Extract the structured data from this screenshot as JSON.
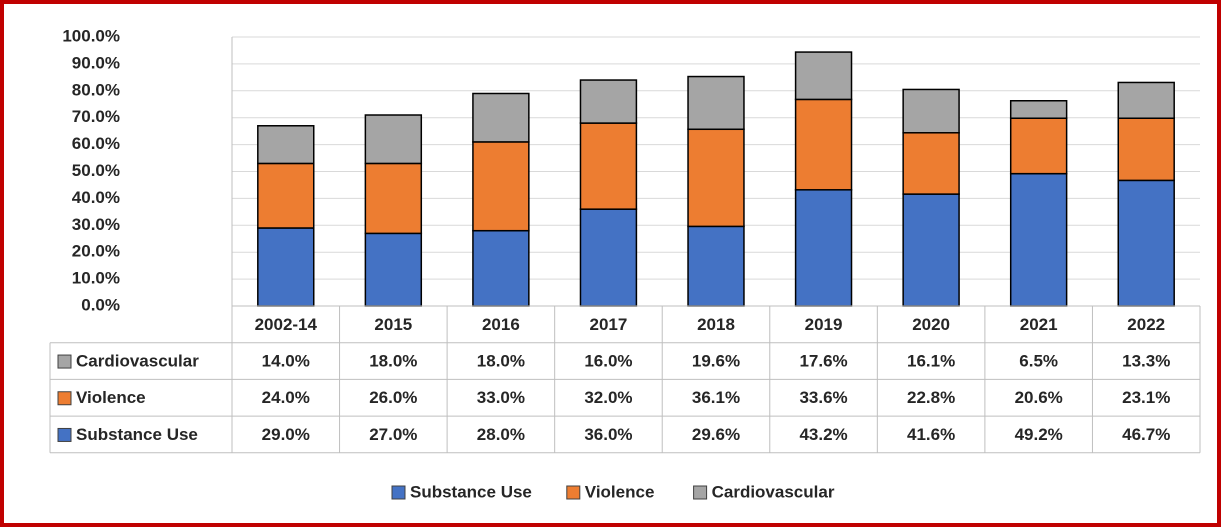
{
  "chart_data": {
    "type": "bar",
    "stacked": true,
    "categories": [
      "2002-14",
      "2015",
      "2016",
      "2017",
      "2018",
      "2019",
      "2020",
      "2021",
      "2022"
    ],
    "series": [
      {
        "name": "Substance Use",
        "color": "#4472c4",
        "values": [
          29.0,
          27.0,
          28.0,
          36.0,
          29.6,
          43.2,
          41.6,
          49.2,
          46.7
        ],
        "value_labels": [
          "29.0%",
          "27.0%",
          "28.0%",
          "36.0%",
          "29.6%",
          "43.2%",
          "41.6%",
          "49.2%",
          "46.7%"
        ]
      },
      {
        "name": "Violence",
        "color": "#ed7d31",
        "values": [
          24.0,
          26.0,
          33.0,
          32.0,
          36.1,
          33.6,
          22.8,
          20.6,
          23.1
        ],
        "value_labels": [
          "24.0%",
          "26.0%",
          "33.0%",
          "32.0%",
          "36.1%",
          "33.6%",
          "22.8%",
          "20.6%",
          "23.1%"
        ]
      },
      {
        "name": "Cardiovascular",
        "color": "#a5a5a5",
        "values": [
          14.0,
          18.0,
          18.0,
          16.0,
          19.6,
          17.6,
          16.1,
          6.5,
          13.3
        ],
        "value_labels": [
          "14.0%",
          "18.0%",
          "18.0%",
          "16.0%",
          "19.6%",
          "17.6%",
          "16.1%",
          "6.5%",
          "13.3%"
        ]
      }
    ],
    "ylim": [
      0,
      100
    ],
    "yticks": [
      {
        "value": 0,
        "label": "0.0%"
      },
      {
        "value": 10,
        "label": "10.0%"
      },
      {
        "value": 20,
        "label": "20.0%"
      },
      {
        "value": 30,
        "label": "30.0%"
      },
      {
        "value": 40,
        "label": "40.0%"
      },
      {
        "value": 50,
        "label": "50.0%"
      },
      {
        "value": 60,
        "label": "60.0%"
      },
      {
        "value": 70,
        "label": "70.0%"
      },
      {
        "value": 80,
        "label": "80.0%"
      },
      {
        "value": 90,
        "label": "90.0%"
      },
      {
        "value": 100,
        "label": "100.0%"
      }
    ],
    "grid": true,
    "legend": "bottom"
  }
}
